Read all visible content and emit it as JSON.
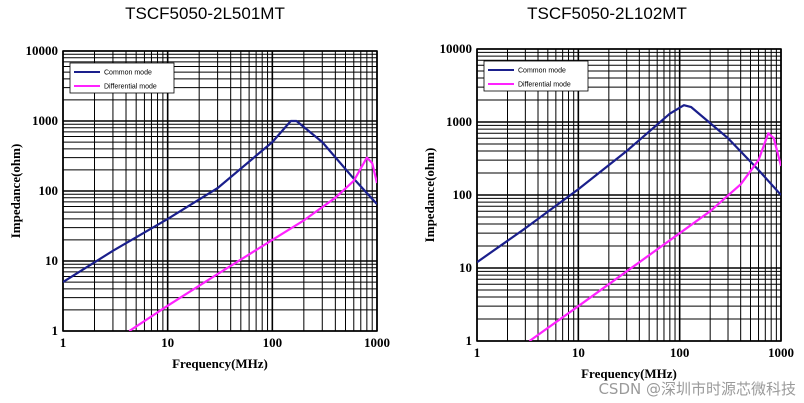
{
  "chart_data": [
    {
      "type": "line",
      "title": "TSCF5050-2L501MT",
      "xlabel": "Frequency(MHz)",
      "ylabel": "Impedance(ohm)",
      "xscale": "log",
      "yscale": "log",
      "xlim": [
        1,
        1000
      ],
      "ylim": [
        1,
        10000
      ],
      "xticks": [
        "1",
        "10",
        "100",
        "1000"
      ],
      "yticks": [
        "1",
        "10",
        "100",
        "1000",
        "10000"
      ],
      "grid": true,
      "legend_position": "top-left",
      "series": [
        {
          "name": "Common mode",
          "color": "#1a1f8c",
          "x": [
            1,
            3,
            10,
            30,
            100,
            150,
            170,
            300,
            600,
            1000
          ],
          "y": [
            5,
            14,
            40,
            110,
            500,
            1000,
            1000,
            500,
            150,
            65
          ]
        },
        {
          "name": "Differential mode",
          "color": "#ff22ff",
          "x": [
            4.3,
            10,
            30,
            100,
            200,
            400,
            600,
            800,
            900,
            1000
          ],
          "y": [
            1,
            2.3,
            6.5,
            20,
            38,
            80,
            140,
            300,
            250,
            130
          ]
        }
      ]
    },
    {
      "type": "line",
      "title": "TSCF5050-2L102MT",
      "xlabel": "Frequency(MHz)",
      "ylabel": "Impedance(ohm)",
      "xscale": "log",
      "yscale": "log",
      "xlim": [
        1,
        1000
      ],
      "ylim": [
        1,
        10000
      ],
      "xticks": [
        "1",
        "10",
        "100",
        "1000"
      ],
      "yticks": [
        "1",
        "10",
        "100",
        "1000",
        "10000"
      ],
      "grid": true,
      "legend_position": "top-left",
      "series": [
        {
          "name": "Common mode",
          "color": "#1a1f8c",
          "x": [
            1,
            3,
            10,
            30,
            80,
            110,
            130,
            300,
            600,
            1000
          ],
          "y": [
            12,
            35,
            120,
            400,
            1300,
            1700,
            1600,
            600,
            220,
            100
          ]
        },
        {
          "name": "Differential mode",
          "color": "#ff22ff",
          "x": [
            3.3,
            10,
            30,
            100,
            200,
            400,
            600,
            750,
            850,
            1000
          ],
          "y": [
            1,
            3,
            9,
            30,
            60,
            140,
            300,
            700,
            600,
            250
          ]
        }
      ]
    }
  ],
  "watermark": "CSDN @深圳市时源芯微科技"
}
